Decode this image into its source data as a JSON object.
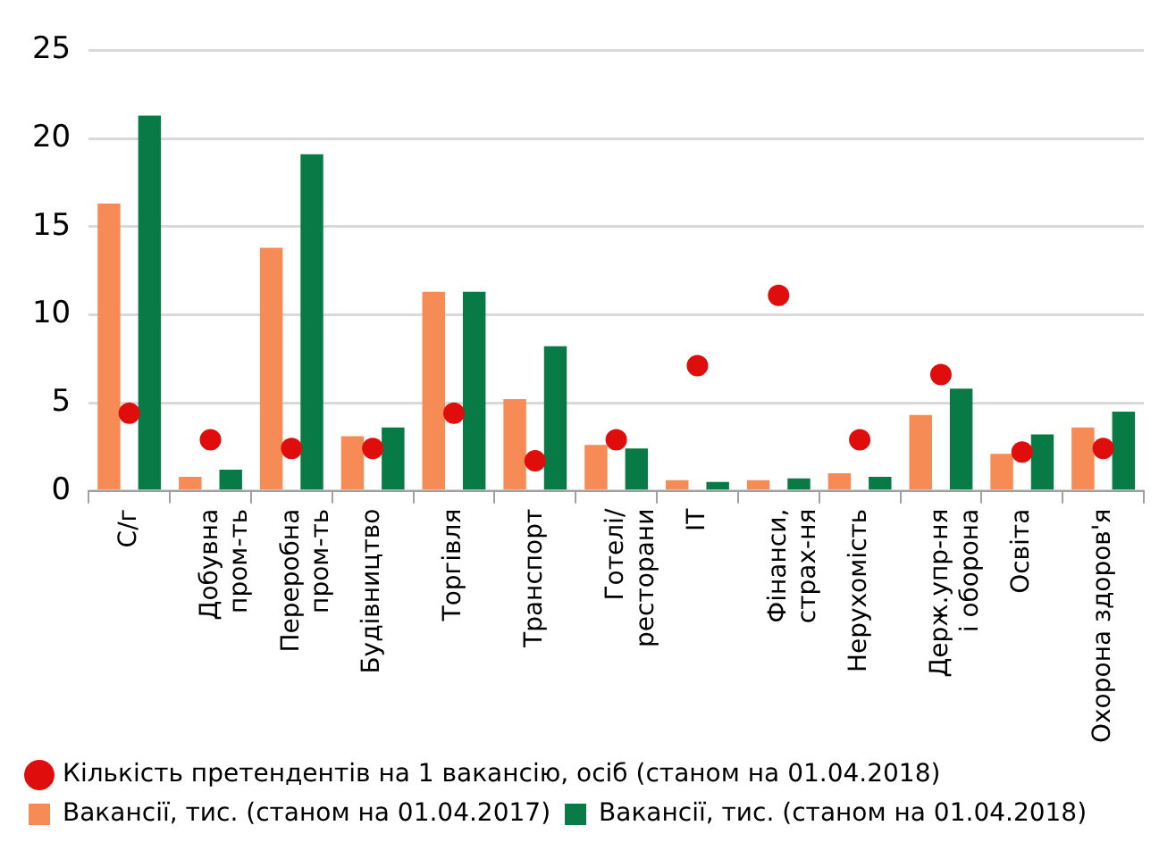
{
  "chart_data": {
    "type": "bar",
    "categories": [
      "С/г",
      "Добувна\nпром-ть",
      "Переробна\nпром-ть",
      "Будівництво",
      "Торгівля",
      "Транспорт",
      "Готелі/\nресторани",
      "ІТ",
      "Фінанси,\nстрах-ня",
      "Нерухомість",
      "Держ.упр-ня\nі оборона",
      "Освіта",
      "Охорона здоров'я"
    ],
    "series": [
      {
        "name": "Вакансії, тис. (станом на 01.04.2017)",
        "color": "#f68b55",
        "values": [
          16.3,
          0.8,
          13.8,
          3.1,
          11.3,
          5.2,
          2.6,
          0.6,
          0.6,
          1.0,
          4.3,
          2.1,
          3.6
        ]
      },
      {
        "name": "Вакансії, тис. (станом на 01.04.2018)",
        "color": "#077a45",
        "values": [
          21.3,
          1.2,
          19.1,
          3.6,
          11.3,
          8.2,
          2.4,
          0.5,
          0.7,
          0.8,
          5.8,
          3.2,
          4.5
        ]
      },
      {
        "name": "Кількість претендентів на 1 вакансію, осіб (станом на 01.04.2018)",
        "type": "scatter",
        "color": "#e00d0d",
        "marker": "circle",
        "values": [
          4.4,
          2.9,
          2.4,
          2.4,
          4.4,
          1.7,
          2.9,
          7.1,
          11.1,
          2.9,
          6.6,
          2.2,
          2.4
        ]
      }
    ],
    "ylim": [
      0,
      25
    ],
    "yticks": [
      0,
      5,
      10,
      15,
      20,
      25
    ],
    "grid": "y",
    "legend": "bottom"
  }
}
